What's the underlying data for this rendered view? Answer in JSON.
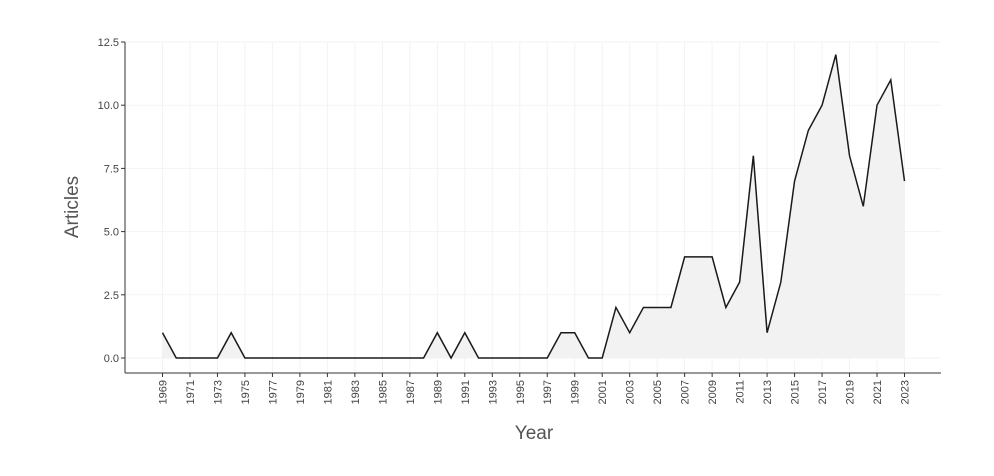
{
  "chart_data": {
    "type": "area",
    "title": "",
    "xlabel": "Year",
    "ylabel": "Articles",
    "xlim": [
      1969,
      2023
    ],
    "ylim": [
      0,
      12.5
    ],
    "grid": true,
    "legend": "none",
    "y_ticks": [
      "0.0",
      "2.5",
      "5.0",
      "7.5",
      "10.0",
      "12.5"
    ],
    "x_tick_labels": [
      "1969",
      "1971",
      "1973",
      "1975",
      "1977",
      "1979",
      "1981",
      "1983",
      "1985",
      "1987",
      "1989",
      "1991",
      "1993",
      "1995",
      "1997",
      "1999",
      "2001",
      "2003",
      "2005",
      "2007",
      "2009",
      "2011",
      "2013",
      "2015",
      "2017",
      "2019",
      "2021",
      "2023"
    ],
    "x": [
      1969,
      1970,
      1971,
      1972,
      1973,
      1974,
      1975,
      1976,
      1977,
      1978,
      1979,
      1980,
      1981,
      1982,
      1983,
      1984,
      1985,
      1986,
      1987,
      1988,
      1989,
      1990,
      1991,
      1992,
      1993,
      1994,
      1995,
      1996,
      1997,
      1998,
      1999,
      2000,
      2001,
      2002,
      2003,
      2004,
      2005,
      2006,
      2007,
      2008,
      2009,
      2010,
      2011,
      2012,
      2013,
      2014,
      2015,
      2016,
      2017,
      2018,
      2019,
      2020,
      2021,
      2022,
      2023
    ],
    "values": [
      1,
      0,
      0,
      0,
      0,
      1,
      0,
      0,
      0,
      0,
      0,
      0,
      0,
      0,
      0,
      0,
      0,
      0,
      0,
      0,
      1,
      0,
      1,
      0,
      0,
      0,
      0,
      0,
      0,
      1,
      1,
      0,
      0,
      2,
      1,
      2,
      2,
      2,
      4,
      4,
      4,
      2,
      3,
      8,
      1,
      3,
      7,
      9,
      10,
      12,
      8,
      6,
      10,
      11,
      7
    ],
    "colors": {
      "line": "#1a1a1a",
      "fill": "#f2f2f2",
      "grid": "#f3f3f3",
      "axis": "#333333"
    }
  }
}
